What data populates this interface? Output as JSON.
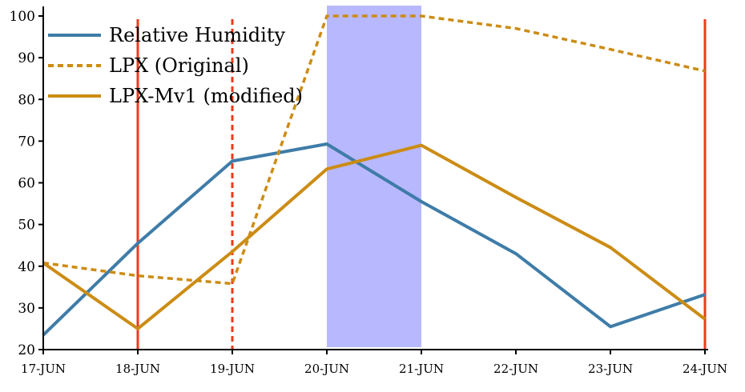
{
  "chart_data": {
    "type": "line",
    "title": "",
    "xlabel": "",
    "ylabel": "",
    "categories": [
      "17-JUN",
      "18-JUN",
      "19-JUN",
      "20-JUN",
      "21-JUN",
      "22-JUN",
      "23-JUN",
      "24-JUN"
    ],
    "ylim": [
      20,
      100
    ],
    "yticks": [
      20,
      30,
      40,
      50,
      60,
      70,
      80,
      90,
      100
    ],
    "grid": false,
    "legend_position": "top-left",
    "series": [
      {
        "name": "Relative Humidity",
        "style": "solid",
        "color": "#3f7ca8",
        "values": [
          23.5,
          45.5,
          65.2,
          69.3,
          55.5,
          43,
          25.5,
          33.2
        ]
      },
      {
        "name": "LPX (Original)",
        "style": "dashed",
        "color": "#cc8c14",
        "values": [
          40.8,
          37.7,
          35.8,
          100,
          100,
          97,
          92,
          86.8
        ]
      },
      {
        "name": "LPX-Mv1 (modified)",
        "style": "solid",
        "color": "#cc8c14",
        "values": [
          40.8,
          25,
          43.5,
          63.3,
          69,
          56.5,
          44.5,
          27.3
        ]
      }
    ],
    "vertical_markers": [
      {
        "category": "18-JUN",
        "style": "solid",
        "color": "#ee3a1c"
      },
      {
        "category": "19-JUN",
        "style": "dashed",
        "color": "#ee3a1c"
      },
      {
        "category": "24-JUN",
        "style": "solid",
        "color": "#ee3a1c"
      }
    ],
    "shaded_span": {
      "from": "20-JUN",
      "to": "21-JUN",
      "color": "#b8b8ff"
    }
  }
}
